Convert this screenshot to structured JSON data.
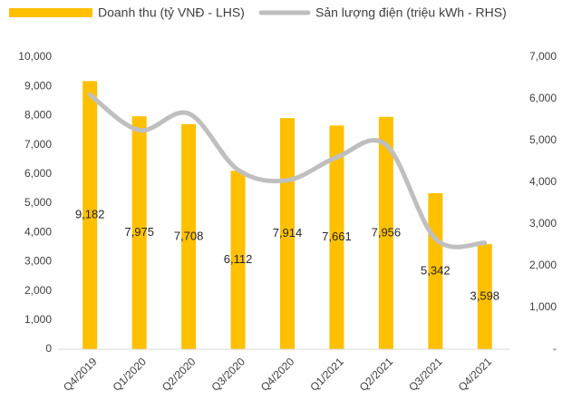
{
  "chart_data": {
    "type": "bar_line",
    "categories": [
      "Q4/2019",
      "Q1/2020",
      "Q2/2020",
      "Q3/2020",
      "Q4/2020",
      "Q1/2021",
      "Q2/2021",
      "Q3/2021",
      "Q4/2021"
    ],
    "series": [
      {
        "name": "Doanh thu (tỷ VNĐ - LHS)",
        "color": "#ffc000",
        "type": "bar",
        "values": [
          9182,
          7975,
          7708,
          6112,
          7914,
          7661,
          7956,
          5342,
          3598
        ],
        "value_labels": [
          "9,182",
          "7,975",
          "7,708",
          "6,112",
          "7,914",
          "7,661",
          "7,956",
          "5,342",
          "3,598"
        ]
      },
      {
        "name": "Sản lượng điện (triệu kWh - RHS)",
        "color": "#bfbfbf",
        "type": "line",
        "axis": "y2",
        "values": [
          6100,
          5250,
          5650,
          4300,
          4050,
          4600,
          4900,
          2650,
          2550
        ]
      }
    ],
    "ylim": [
      0,
      10000
    ],
    "yticks": [
      0,
      {
        "value": 1000,
        "label": "1,000"
      },
      {
        "value": 2000,
        "label": "2,000"
      },
      {
        "value": 3000,
        "label": "3,000"
      },
      {
        "value": 4000,
        "label": "4,000"
      },
      {
        "value": 5000,
        "label": "5,000"
      },
      {
        "value": 6000,
        "label": "6,000"
      },
      {
        "value": 7000,
        "label": "7,000"
      },
      {
        "value": 8000,
        "label": "8,000"
      },
      {
        "value": 9000,
        "label": "9,000"
      },
      {
        "value": 10000,
        "label": "10,000"
      }
    ],
    "y2lim": [
      0,
      7000
    ],
    "y2ticks": [
      {
        "value": 0,
        "label": "-"
      },
      {
        "value": 1000,
        "label": "1,000"
      },
      {
        "value": 2000,
        "label": "2,000"
      },
      {
        "value": 3000,
        "label": "3,000"
      },
      {
        "value": 4000,
        "label": "4,000"
      },
      {
        "value": 5000,
        "label": "5,000"
      },
      {
        "value": 6000,
        "label": "6,000"
      },
      {
        "value": 7000,
        "label": "7,000"
      }
    ],
    "legend": "top"
  }
}
